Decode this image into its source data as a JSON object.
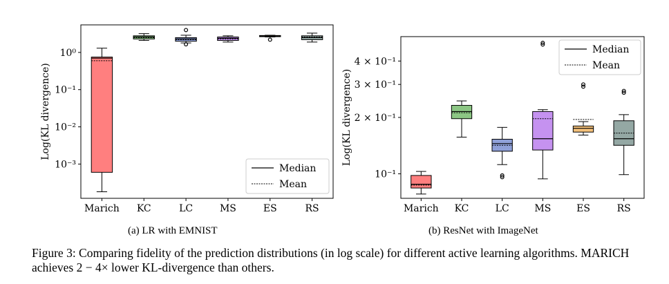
{
  "chart_data": [
    {
      "type": "box",
      "ylabel": "Log(KL divergence)",
      "yscale": "log",
      "ylim": [
        0.00012,
        5.5
      ],
      "yticks": [
        {
          "value": 1,
          "label": "10⁰"
        },
        {
          "value": 0.1,
          "label": "10⁻¹"
        },
        {
          "value": 0.01,
          "label": "10⁻²"
        },
        {
          "value": 0.001,
          "label": "10⁻³"
        }
      ],
      "categories": [
        "Marich",
        "KC",
        "LC",
        "MS",
        "ES",
        "RS"
      ],
      "boxes": [
        {
          "name": "Marich",
          "color": "#ff7f7f",
          "wlow": 0.00018,
          "q1": 0.0006,
          "median": 0.7,
          "q3": 0.75,
          "whigh": 1.3,
          "mean": 0.6,
          "fliers": []
        },
        {
          "name": "KC",
          "color": "#8cc684",
          "wlow": 2.1,
          "q1": 2.3,
          "median": 2.6,
          "q3": 2.8,
          "whigh": 3.2,
          "mean": 2.5,
          "fliers": []
        },
        {
          "name": "LC",
          "color": "#8fa0d8",
          "wlow": 1.8,
          "q1": 2.0,
          "median": 2.3,
          "q3": 2.5,
          "whigh": 2.9,
          "mean": 2.2,
          "fliers": [
            4.0,
            1.65
          ]
        },
        {
          "name": "MS",
          "color": "#c592f0",
          "wlow": 1.9,
          "q1": 2.1,
          "median": 2.4,
          "q3": 2.6,
          "whigh": 2.8,
          "mean": 2.3,
          "fliers": []
        },
        {
          "name": "ES",
          "color": "#f3c07a",
          "wlow": 2.6,
          "q1": 2.65,
          "median": 2.75,
          "q3": 2.85,
          "whigh": 2.9,
          "mean": 2.7,
          "fliers": [
            2.2
          ]
        },
        {
          "name": "RS",
          "color": "#94a8a4",
          "wlow": 1.9,
          "q1": 2.2,
          "median": 2.5,
          "q3": 2.8,
          "whigh": 3.3,
          "mean": 2.6,
          "fliers": []
        }
      ],
      "legend": {
        "position": "bottom-right",
        "entries": [
          "Median",
          "Mean"
        ]
      },
      "subcaption": "(a) LR with EMNIST"
    },
    {
      "type": "box",
      "ylabel": "Log(KL divergence)",
      "yscale": "log",
      "ylim": [
        0.074,
        0.54
      ],
      "yticks": [
        {
          "value": 0.4,
          "label": "4 × 10⁻¹"
        },
        {
          "value": 0.3,
          "label": "3 × 10⁻¹"
        },
        {
          "value": 0.2,
          "label": "2 × 10⁻¹"
        },
        {
          "value": 0.1,
          "label": "10⁻¹"
        }
      ],
      "categories": [
        "Marich",
        "KC",
        "LC",
        "MS",
        "ES",
        "RS"
      ],
      "boxes": [
        {
          "name": "Marich",
          "color": "#ff7f7f",
          "wlow": 0.078,
          "q1": 0.084,
          "median": 0.088,
          "q3": 0.098,
          "whigh": 0.103,
          "mean": 0.087,
          "fliers": []
        },
        {
          "name": "KC",
          "color": "#8cc684",
          "wlow": 0.157,
          "q1": 0.197,
          "median": 0.215,
          "q3": 0.232,
          "whigh": 0.245,
          "mean": 0.212,
          "fliers": []
        },
        {
          "name": "LC",
          "color": "#8fa0d8",
          "wlow": 0.112,
          "q1": 0.132,
          "median": 0.145,
          "q3": 0.153,
          "whigh": 0.177,
          "mean": 0.142,
          "fliers": [
            0.098,
            0.096
          ]
        },
        {
          "name": "MS",
          "color": "#c592f0",
          "wlow": 0.094,
          "q1": 0.134,
          "median": 0.154,
          "q3": 0.215,
          "whigh": 0.22,
          "mean": 0.197,
          "fliers": [
            0.5,
            0.49
          ]
        },
        {
          "name": "ES",
          "color": "#f3c07a",
          "wlow": 0.161,
          "q1": 0.167,
          "median": 0.175,
          "q3": 0.18,
          "whigh": 0.19,
          "mean": 0.195,
          "fliers": [
            0.3,
            0.292
          ]
        },
        {
          "name": "RS",
          "color": "#94a8a4",
          "wlow": 0.099,
          "q1": 0.142,
          "median": 0.154,
          "q3": 0.192,
          "whigh": 0.207,
          "mean": 0.165,
          "fliers": [
            0.277,
            0.271
          ]
        }
      ],
      "legend": {
        "position": "top-right",
        "entries": [
          "Median",
          "Mean"
        ]
      },
      "subcaption": "(b) ResNet with ImageNet"
    }
  ],
  "caption": {
    "prefix": "Figure 3: Comparing fidelity of the prediction distributions (in log scale) for different active learning algorithms. M",
    "smallcaps": "ARICH",
    "suffix": " achieves 2 − 4× lower KL-divergence than others."
  }
}
